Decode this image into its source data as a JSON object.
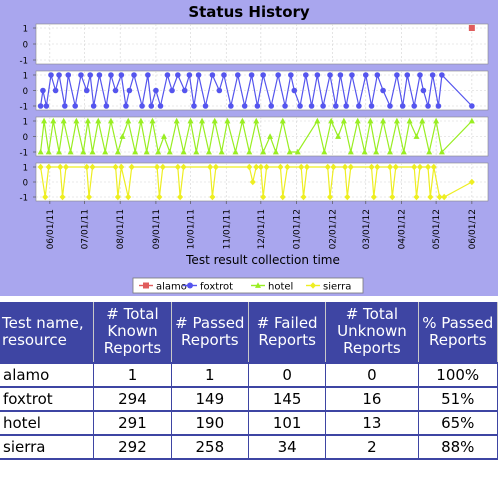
{
  "chart_data": {
    "type": "line",
    "title": "Status History",
    "xlabel": "Test result collection time",
    "x_ticks": [
      "06/01/11",
      "07/01/11",
      "08/01/11",
      "09/01/11",
      "10/01/11",
      "11/01/11",
      "12/01/11",
      "01/01/12",
      "02/01/12",
      "03/01/12",
      "04/01/12",
      "05/01/12",
      "06/01/12"
    ],
    "x_range": [
      "05/20/11",
      "06/15/12"
    ],
    "y_ticks": [
      "-1",
      "0",
      "1"
    ],
    "ylim": [
      -1,
      1
    ],
    "series": [
      {
        "name": "alamo",
        "color": "#e05c5c",
        "marker": "square",
        "points": [
          [
            "06/01/12",
            1
          ]
        ]
      },
      {
        "name": "foxtrot",
        "color": "#5555ee",
        "marker": "circle",
        "points": [
          [
            "05/24/11",
            -1
          ],
          [
            "05/26/11",
            0
          ],
          [
            "05/29/11",
            -1
          ],
          [
            "06/02/11",
            1
          ],
          [
            "06/06/11",
            0
          ],
          [
            "06/09/11",
            1
          ],
          [
            "06/14/11",
            -1
          ],
          [
            "06/17/11",
            1
          ],
          [
            "06/23/11",
            -1
          ],
          [
            "06/28/11",
            1
          ],
          [
            "07/03/11",
            0
          ],
          [
            "07/06/11",
            1
          ],
          [
            "07/09/11",
            -1
          ],
          [
            "07/14/11",
            1
          ],
          [
            "07/20/11",
            -1
          ],
          [
            "07/24/11",
            1
          ],
          [
            "07/28/11",
            0
          ],
          [
            "08/02/11",
            1
          ],
          [
            "08/06/11",
            -1
          ],
          [
            "08/09/11",
            0
          ],
          [
            "08/13/11",
            1
          ],
          [
            "08/20/11",
            -1
          ],
          [
            "08/25/11",
            1
          ],
          [
            "08/28/11",
            -1
          ],
          [
            "09/01/11",
            0
          ],
          [
            "09/05/11",
            -1
          ],
          [
            "09/11/11",
            1
          ],
          [
            "09/15/11",
            0
          ],
          [
            "09/20/11",
            1
          ],
          [
            "09/26/11",
            0
          ],
          [
            "09/30/11",
            1
          ],
          [
            "10/04/11",
            -1
          ],
          [
            "10/08/11",
            1
          ],
          [
            "10/14/11",
            -1
          ],
          [
            "10/20/11",
            1
          ],
          [
            "10/26/11",
            0
          ],
          [
            "10/30/11",
            1
          ],
          [
            "11/05/11",
            -1
          ],
          [
            "11/11/11",
            1
          ],
          [
            "11/17/11",
            -1
          ],
          [
            "11/23/11",
            1
          ],
          [
            "11/28/11",
            -1
          ],
          [
            "12/03/11",
            1
          ],
          [
            "12/10/11",
            -1
          ],
          [
            "12/16/11",
            1
          ],
          [
            "12/22/11",
            -1
          ],
          [
            "12/27/11",
            1
          ],
          [
            "12/30/11",
            0
          ],
          [
            "01/04/12",
            -1
          ],
          [
            "01/09/12",
            1
          ],
          [
            "01/14/12",
            -1
          ],
          [
            "01/19/12",
            1
          ],
          [
            "01/24/12",
            -1
          ],
          [
            "01/30/12",
            1
          ],
          [
            "02/04/12",
            -1
          ],
          [
            "02/08/12",
            1
          ],
          [
            "02/13/12",
            -1
          ],
          [
            "02/18/12",
            1
          ],
          [
            "02/24/12",
            -1
          ],
          [
            "03/01/12",
            1
          ],
          [
            "03/06/12",
            -1
          ],
          [
            "03/11/12",
            1
          ],
          [
            "03/16/12",
            0
          ],
          [
            "03/22/12",
            -1
          ],
          [
            "03/28/12",
            1
          ],
          [
            "04/02/12",
            -1
          ],
          [
            "04/06/12",
            1
          ],
          [
            "04/12/12",
            -1
          ],
          [
            "04/17/12",
            1
          ],
          [
            "04/20/12",
            0
          ],
          [
            "04/24/12",
            -1
          ],
          [
            "04/28/12",
            1
          ],
          [
            "05/03/12",
            -1
          ],
          [
            "05/06/12",
            1
          ],
          [
            "06/01/12",
            -1
          ]
        ]
      },
      {
        "name": "hotel",
        "color": "#99ee22",
        "marker": "triangle",
        "points": [
          [
            "05/24/11",
            -1
          ],
          [
            "05/27/11",
            1
          ],
          [
            "05/31/11",
            -1
          ],
          [
            "06/04/11",
            1
          ],
          [
            "06/09/11",
            -1
          ],
          [
            "06/13/11",
            1
          ],
          [
            "06/19/11",
            -1
          ],
          [
            "06/24/11",
            1
          ],
          [
            "06/30/11",
            -1
          ],
          [
            "07/04/11",
            1
          ],
          [
            "07/08/11",
            -1
          ],
          [
            "07/13/11",
            1
          ],
          [
            "07/19/11",
            -1
          ],
          [
            "07/24/11",
            1
          ],
          [
            "07/30/11",
            -1
          ],
          [
            "08/03/11",
            0
          ],
          [
            "08/08/11",
            1
          ],
          [
            "08/14/11",
            -1
          ],
          [
            "08/19/11",
            1
          ],
          [
            "08/24/11",
            -1
          ],
          [
            "08/29/11",
            1
          ],
          [
            "09/03/11",
            -1
          ],
          [
            "09/08/11",
            0
          ],
          [
            "09/13/11",
            -1
          ],
          [
            "09/19/11",
            1
          ],
          [
            "09/25/11",
            -1
          ],
          [
            "10/01/11",
            1
          ],
          [
            "10/06/11",
            -1
          ],
          [
            "10/11/11",
            1
          ],
          [
            "10/17/11",
            -1
          ],
          [
            "10/22/11",
            1
          ],
          [
            "10/28/11",
            -1
          ],
          [
            "11/02/11",
            1
          ],
          [
            "11/09/11",
            -1
          ],
          [
            "11/15/11",
            1
          ],
          [
            "11/21/11",
            -1
          ],
          [
            "11/27/11",
            1
          ],
          [
            "12/03/11",
            -1
          ],
          [
            "12/09/11",
            0
          ],
          [
            "12/14/11",
            -1
          ],
          [
            "12/20/11",
            1
          ],
          [
            "12/26/11",
            -1
          ],
          [
            "01/02/12",
            -1
          ],
          [
            "01/19/12",
            1
          ],
          [
            "01/25/12",
            -1
          ],
          [
            "01/31/12",
            1
          ],
          [
            "02/06/12",
            0
          ],
          [
            "02/11/12",
            1
          ],
          [
            "02/17/12",
            -1
          ],
          [
            "02/23/12",
            1
          ],
          [
            "02/29/12",
            -1
          ],
          [
            "03/05/12",
            1
          ],
          [
            "03/10/12",
            -1
          ],
          [
            "03/16/12",
            1
          ],
          [
            "03/22/12",
            -1
          ],
          [
            "03/28/12",
            1
          ],
          [
            "04/03/12",
            -1
          ],
          [
            "04/08/12",
            1
          ],
          [
            "04/14/12",
            0
          ],
          [
            "04/19/12",
            1
          ],
          [
            "04/25/12",
            -1
          ],
          [
            "05/01/12",
            1
          ],
          [
            "05/06/12",
            -1
          ],
          [
            "06/01/12",
            1
          ]
        ]
      },
      {
        "name": "sierra",
        "color": "#eeee22",
        "marker": "diamond",
        "points": [
          [
            "05/24/11",
            1
          ],
          [
            "05/28/11",
            -1
          ],
          [
            "05/31/11",
            1
          ],
          [
            "06/10/11",
            1
          ],
          [
            "06/12/11",
            -1
          ],
          [
            "06/15/11",
            1
          ],
          [
            "07/03/11",
            1
          ],
          [
            "07/05/11",
            -1
          ],
          [
            "07/08/11",
            1
          ],
          [
            "07/28/11",
            1
          ],
          [
            "07/30/11",
            -1
          ],
          [
            "08/02/11",
            1
          ],
          [
            "08/08/11",
            -1
          ],
          [
            "08/11/11",
            1
          ],
          [
            "09/02/11",
            1
          ],
          [
            "09/04/11",
            -1
          ],
          [
            "09/07/11",
            1
          ],
          [
            "09/20/11",
            1
          ],
          [
            "09/22/11",
            -1
          ],
          [
            "09/25/11",
            1
          ],
          [
            "10/18/11",
            1
          ],
          [
            "10/20/11",
            -1
          ],
          [
            "10/23/11",
            1
          ],
          [
            "11/21/11",
            1
          ],
          [
            "11/24/11",
            0
          ],
          [
            "11/27/11",
            1
          ],
          [
            "12/01/11",
            1
          ],
          [
            "12/03/11",
            -1
          ],
          [
            "12/06/11",
            1
          ],
          [
            "12/18/11",
            1
          ],
          [
            "12/20/11",
            -1
          ],
          [
            "12/24/11",
            1
          ],
          [
            "01/05/12",
            1
          ],
          [
            "01/07/12",
            -1
          ],
          [
            "01/10/12",
            1
          ],
          [
            "01/28/12",
            1
          ],
          [
            "01/30/12",
            -1
          ],
          [
            "02/02/12",
            1
          ],
          [
            "02/12/12",
            1
          ],
          [
            "02/14/12",
            -1
          ],
          [
            "02/17/12",
            1
          ],
          [
            "03/06/12",
            1
          ],
          [
            "03/08/12",
            -1
          ],
          [
            "03/11/12",
            1
          ],
          [
            "03/22/12",
            1
          ],
          [
            "03/24/12",
            -1
          ],
          [
            "03/27/12",
            1
          ],
          [
            "04/12/12",
            1
          ],
          [
            "04/14/12",
            -1
          ],
          [
            "04/17/12",
            1
          ],
          [
            "04/24/12",
            1
          ],
          [
            "04/26/12",
            -1
          ],
          [
            "04/29/12",
            1
          ],
          [
            "05/04/12",
            -1
          ],
          [
            "05/08/12",
            -1
          ],
          [
            "06/01/12",
            0
          ]
        ]
      }
    ]
  },
  "table": {
    "headers": [
      "Test name, resource",
      "# Total Known Reports",
      "# Passed Reports",
      "# Failed Reports",
      "# Total Unknown Reports",
      "% Passed Reports"
    ],
    "rows": [
      [
        "alamo",
        "1",
        "1",
        "0",
        "0",
        "100%"
      ],
      [
        "foxtrot",
        "294",
        "149",
        "145",
        "16",
        "51%"
      ],
      [
        "hotel",
        "291",
        "190",
        "101",
        "13",
        "65%"
      ],
      [
        "sierra",
        "292",
        "258",
        "34",
        "2",
        "88%"
      ]
    ]
  }
}
